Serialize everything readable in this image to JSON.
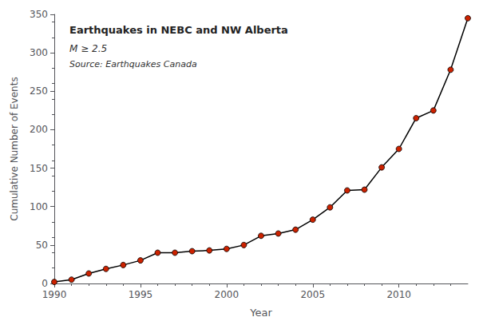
{
  "chart_data": {
    "type": "line",
    "title": "Earthquakes in NEBC and NW Alberta",
    "subtitle": "M ≥ 2.5",
    "annotations": [
      "Source: Earthquakes Canada"
    ],
    "x_label": "Year",
    "y_label": "Cumulative Number of Events",
    "x": [
      1990,
      1991,
      1992,
      1993,
      1994,
      1995,
      1996,
      1997,
      1998,
      1999,
      2000,
      2001,
      2002,
      2003,
      2004,
      2005,
      2006,
      2007,
      2008,
      2009,
      2010,
      2011,
      2012,
      2013,
      2014
    ],
    "values": [
      2,
      5,
      13,
      19,
      24,
      30,
      40,
      40,
      42,
      43,
      45,
      50,
      62,
      65,
      70,
      83,
      99,
      121,
      122,
      151,
      175,
      215,
      225,
      278,
      345
    ],
    "color": "#000000",
    "colors": [
      "#cc2200",
      "#cc2200",
      "#cc2200",
      "#cc2200",
      "#cc2200",
      "#cc2200",
      "#cc2200",
      "#cc2200",
      "#cc2200",
      "#cc2200",
      "#cc2200",
      "#cc2200",
      "#cc2200",
      "#cc2200",
      "#cc2200",
      "#cc2200",
      "#cc2200",
      "#cc2200",
      "#cc2200",
      "#cc2200",
      "#cc2200",
      "#cc2200",
      "#cc2200",
      "#cc2200",
      "#cc2200"
    ],
    "marker": "circle",
    "xlim": [
      1990,
      2014
    ],
    "xticks": [
      1990,
      1995,
      2000,
      2005,
      2010
    ],
    "ylim": [
      0,
      350
    ],
    "yticks": [
      0,
      50,
      100,
      150,
      200,
      250,
      300,
      350
    ],
    "grid": false
  }
}
